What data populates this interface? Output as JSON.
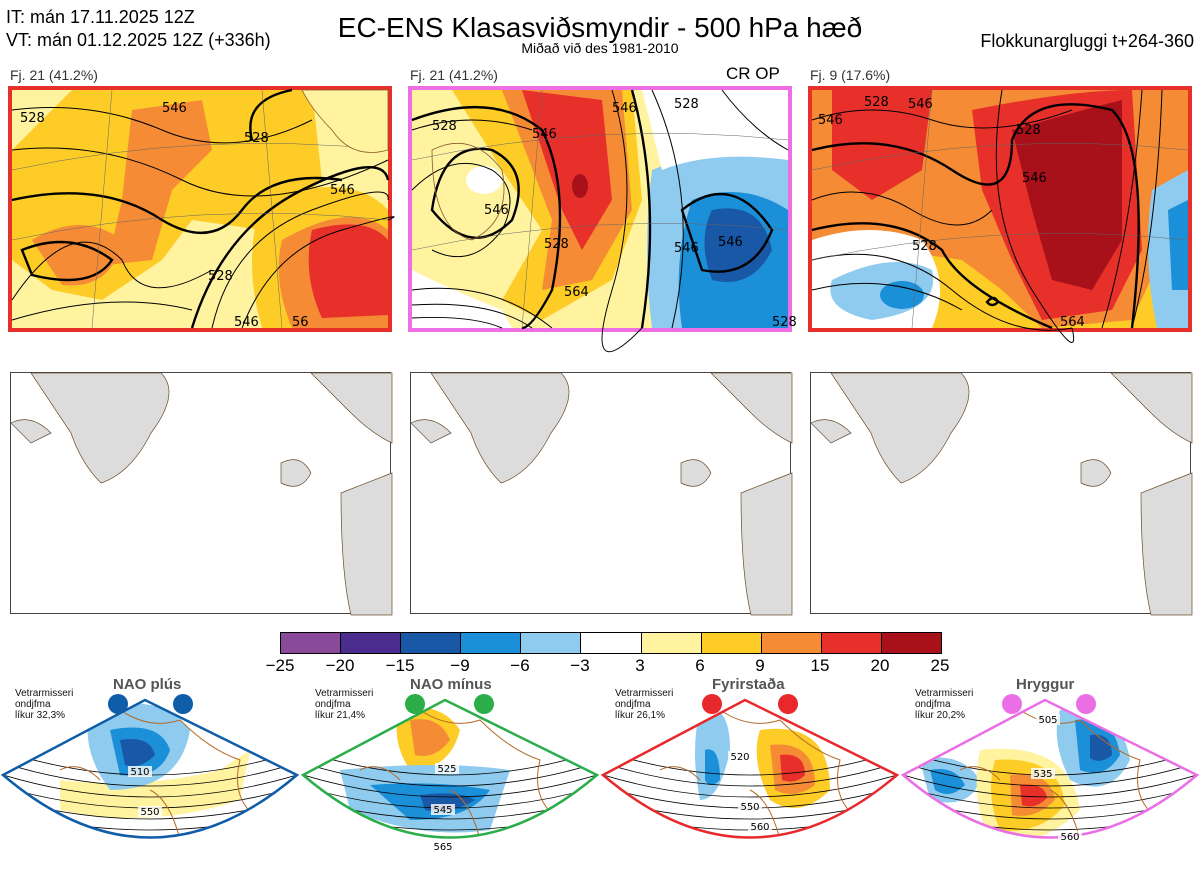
{
  "header": {
    "init_time": "IT: mán 17.11.2025 12Z",
    "valid_time": "VT: mán 01.12.2025 12Z  (+336h)",
    "title": "EC-ENS Klasasviðsmyndir - 500 hPa hæð",
    "subtitle": "Miðað við des 1981-2010",
    "window": "Flokkunargluggi t+264-360"
  },
  "panels": [
    {
      "label": "Fj. 21 (41.2%)",
      "border_color": "#e8302b"
    },
    {
      "label": "Fj. 21 (41.2%)",
      "border_color": "#ee6fe4",
      "tag": "CR OP"
    },
    {
      "label": "Fj. 9 (17.6%)",
      "border_color": "#e8302b"
    }
  ],
  "contour_labels": {
    "p1": [
      "528",
      "546",
      "528",
      "546",
      "528",
      "546",
      "56"
    ],
    "p2": [
      "528",
      "546",
      "546",
      "528",
      "546",
      "564",
      "528",
      "546",
      "546",
      "528"
    ],
    "p3": [
      "546",
      "528",
      "546",
      "528",
      "546",
      "564",
      "528"
    ]
  },
  "colorbar": {
    "ticks": [
      "−25",
      "−20",
      "−15",
      "−9",
      "−6",
      "−3",
      "3",
      "6",
      "9",
      "15",
      "20",
      "25"
    ],
    "colors": [
      "#8a4a9a",
      "#4b2d8f",
      "#1958a6",
      "#1b8fd8",
      "#8ecbee",
      "#ffffff",
      "#fff3a0",
      "#fdcc26",
      "#f58b35",
      "#e8302b",
      "#a8101a"
    ]
  },
  "regimes": [
    {
      "title": "NAO plús",
      "season": "Vetrarmisseri",
      "avg": "ondjfma",
      "prob": "líkur 32,3%",
      "color": "#0f5ca8",
      "contours": [
        "510",
        "550"
      ]
    },
    {
      "title": "NAO mínus",
      "season": "Vetrarmisseri",
      "avg": "ondjfma",
      "prob": "líkur 21,4%",
      "color": "#2bae4a",
      "contours": [
        "525",
        "545",
        "565"
      ]
    },
    {
      "title": "Fyrirstaða",
      "season": "Vetrarmisseri",
      "avg": "ondjfma",
      "prob": "líkur 26,1%",
      "color": "#e8282b",
      "contours": [
        "520",
        "550",
        "560"
      ]
    },
    {
      "title": "Hryggur",
      "season": "Vetrarmisseri",
      "avg": "ondjfma",
      "prob": "líkur 20,2%",
      "color": "#ea6fe6",
      "contours": [
        "505",
        "535",
        "560"
      ]
    }
  ]
}
